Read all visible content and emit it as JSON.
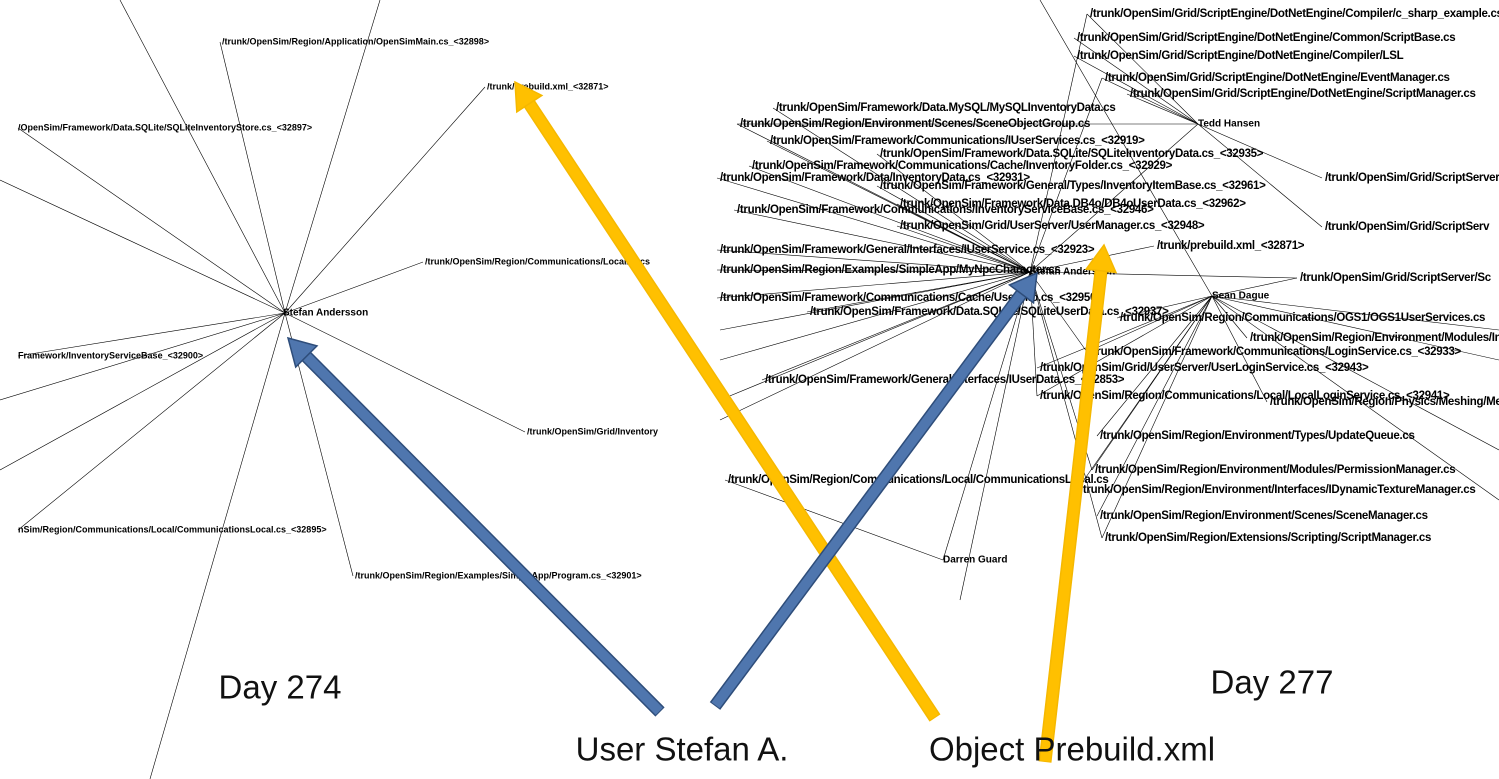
{
  "left_graph": {
    "hub": "Stefan Andersson",
    "nodes": [
      "/trunk/OpenSim/Region/Application/OpenSimMain.cs_<32898>",
      "/trunk/prebuild.xml_<32871>",
      "/OpenSim/Framework/Data.SQLite/SQLiteInventoryStore.cs_<32897>",
      "/trunk/OpenSim/Region/Communications/Local/Locs",
      "Framework/InventoryServiceBase_<32900>",
      "/trunk/OpenSim/Grid/Inventory",
      "nSim/Region/Communications/Local/CommunicationsLocal.cs_<32895>",
      "/trunk/OpenSim/Region/Examples/SimpleApp/Program.cs_<32901>"
    ]
  },
  "right_graph": {
    "hubs": [
      "Tedd Hansen",
      "Stefan Andersson",
      "Sean Dague",
      "Darren Guard"
    ],
    "nodes": [
      "/trunk/OpenSim/Grid/ScriptEngine/DotNetEngine/Compiler/c_sharp_example.cs",
      "/trunk/OpenSim/Grid/ScriptEngine/DotNetEngine/Common/ScriptBase.cs",
      "/trunk/OpenSim/Grid/ScriptEngine/DotNetEngine/Compiler/LSL",
      "/trunk/OpenSim/Grid/ScriptEngine/DotNetEngine/EventManager.cs",
      "/trunk/OpenSim/Grid/ScriptEngine/DotNetEngine/ScriptManager.cs",
      "/trunk/OpenSim/Framework/Data.MySQL/MySQLInventoryData.cs",
      "/trunk/OpenSim/Region/Environment/Scenes/SceneObjectGroup.cs",
      "/trunk/OpenSim/Framework/Communications/IUserServices.cs_<32919>",
      "/trunk/OpenSim/Framework/Communications/Cache/InventoryFolder.cs_<32929>",
      "/trunk/OpenSim/Framework/Data.SQLite/SQLiteInventoryData.cs_<32935>",
      "/trunk/OpenSim/Framework/Data/InventoryData.cs_<32931>",
      "/trunk/OpenSim/Framework/General/Types/InventoryItemBase.cs_<32961>",
      "/trunk/OpenSim/Framework/Communications/InventoryServiceBase.cs_<32946>",
      "/trunk/OpenSim/Framework/Data.DB4o/DB4oUserData.cs_<32962>",
      "/trunk/OpenSim/Grid/UserServer/UserManager.cs_<32948>",
      "/trunk/OpenSim/Framework/General/Interfaces/IUserService.cs_<32923>",
      "/trunk/OpenSim/Grid/ScriptServer",
      "/trunk/OpenSim/Grid/ScriptServ",
      "/trunk/OpenSim/Grid/ScriptServer/Sc",
      "/trunk/OpenSim/Region/Examples/SimpleApp/MyNpcCharacter.cs",
      "/trunk/OpenSim/Framework/Communications/Cache/UserInfo.cs_<32950>",
      "/trunk/OpenSim/Framework/Data.SQLite/SQLiteUserData.cs_<32937>",
      "/trunk/OpenSim/Region/Communications/OGS1/OGS1UserServices.cs",
      "/trunk/OpenSim/Region/Environment/Modules/InventoryModule.cs",
      "/trunk/OpenSim/Framework/Communications/LoginService.cs_<32933>",
      "/trunk/OpenSim/Grid/UserServer/UserLoginService.cs_<32943>",
      "/trunk/OpenSim/Framework/General/Interfaces/IUserData.cs_<32853>",
      "/trunk/OpenSim/Region/Communications/Local/LocalLoginService.cs_<32941>",
      "/trunk/OpenSim/Region/Physics/Meshing/Meshmerizer.cs",
      "/trunk/OpenSim/Region/Environment/Types/UpdateQueue.cs",
      "/trunk/OpenSim/Region/Environment/Modules/PermissionManager.cs",
      "/trunk/OpenSim/Region/Environment/Interfaces/IDynamicTextureManager.cs",
      "/trunk/OpenSim/Region/Environment/Scenes/SceneManager.cs",
      "/trunk/OpenSim/Region/Extensions/Scripting/ScriptManager.cs",
      "/trunk/OpenSim/Region/Communications/Local/CommunicationsLocal.cs",
      "/trunk/prebuild.xml_<32871>"
    ]
  },
  "annotations": {
    "day_left": "Day 274",
    "day_right": "Day 277",
    "user": "User Stefan A.",
    "object": "Object Prebuild.xml"
  }
}
